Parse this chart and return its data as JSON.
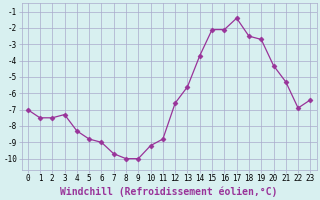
{
  "x": [
    0,
    1,
    2,
    3,
    4,
    5,
    6,
    7,
    8,
    9,
    10,
    11,
    12,
    13,
    14,
    15,
    16,
    17,
    18,
    19,
    20,
    21,
    22,
    23
  ],
  "y": [
    -7,
    -7.5,
    -7.5,
    -7.3,
    -8.3,
    -8.8,
    -9.0,
    -9.7,
    -10.0,
    -10.0,
    -9.2,
    -8.8,
    -6.6,
    -5.6,
    -3.7,
    -2.1,
    -2.1,
    -1.4,
    -2.5,
    -2.7,
    -4.3,
    -5.3,
    -6.9,
    -6.4
  ],
  "line_color": "#993399",
  "marker_size": 2.5,
  "bg_color": "#d8f0f0",
  "grid_color": "#aaaacc",
  "xlabel": "Windchill (Refroidissement éolien,°C)",
  "xlabel_fontsize": 7,
  "xlim": [
    -0.5,
    23.5
  ],
  "ylim": [
    -10.7,
    -0.5
  ],
  "yticks": [
    -10,
    -9,
    -8,
    -7,
    -6,
    -5,
    -4,
    -3,
    -2,
    -1
  ],
  "xticks": [
    0,
    1,
    2,
    3,
    4,
    5,
    6,
    7,
    8,
    9,
    10,
    11,
    12,
    13,
    14,
    15,
    16,
    17,
    18,
    19,
    20,
    21,
    22,
    23
  ],
  "tick_fontsize": 5.5
}
